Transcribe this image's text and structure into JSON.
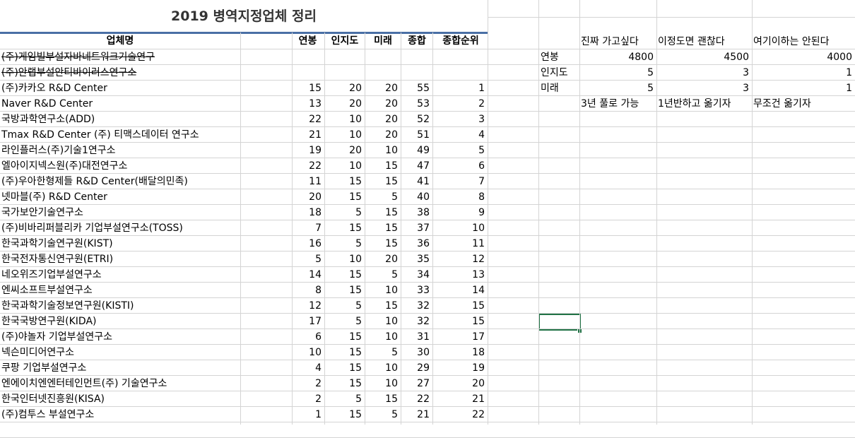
{
  "title": "2019 병역지정업체 정리",
  "headers": {
    "company": "업체명",
    "salary": "연봉",
    "recognition": "인지도",
    "future": "미래",
    "total": "종합",
    "rank": "종합순위"
  },
  "rows": [
    {
      "name": "(주)게임빌부설자바네트워크기술연구",
      "salary": "",
      "recognition": "",
      "future": "",
      "total": "",
      "rank": "",
      "struck": true
    },
    {
      "name": "(주)안랩부설안티바이러스연구소",
      "salary": "",
      "recognition": "",
      "future": "",
      "total": "",
      "rank": "",
      "struck": true
    },
    {
      "name": "(주)카카오 R&D Center",
      "salary": "15",
      "recognition": "20",
      "future": "20",
      "total": "55",
      "rank": "1"
    },
    {
      "name": "Naver R&D Center",
      "salary": "13",
      "recognition": "20",
      "future": "20",
      "total": "53",
      "rank": "2"
    },
    {
      "name": "국방과학연구소(ADD)",
      "salary": "22",
      "recognition": "10",
      "future": "20",
      "total": "52",
      "rank": "3"
    },
    {
      "name": "Tmax R&D Center (주) 티맥스데이터 연구소",
      "salary": "21",
      "recognition": "10",
      "future": "20",
      "total": "51",
      "rank": "4"
    },
    {
      "name": "라인플러스(주)기술1연구소",
      "salary": "19",
      "recognition": "20",
      "future": "10",
      "total": "49",
      "rank": "5"
    },
    {
      "name": "엘아이지넥스원(주)대전연구소",
      "salary": "22",
      "recognition": "10",
      "future": "15",
      "total": "47",
      "rank": "6"
    },
    {
      "name": "(주)우아한형제들 R&D Center(배달의민족)",
      "salary": "11",
      "recognition": "15",
      "future": "15",
      "total": "41",
      "rank": "7"
    },
    {
      "name": "넷마블(주) R&D Center",
      "salary": "20",
      "recognition": "15",
      "future": "5",
      "total": "40",
      "rank": "8"
    },
    {
      "name": "국가보안기술연구소",
      "salary": "18",
      "recognition": "5",
      "future": "15",
      "total": "38",
      "rank": "9"
    },
    {
      "name": "(주)비바리퍼블리카 기업부설연구소(TOSS)",
      "salary": "7",
      "recognition": "15",
      "future": "15",
      "total": "37",
      "rank": "10"
    },
    {
      "name": "한국과학기술연구원(KIST)",
      "salary": "16",
      "recognition": "5",
      "future": "15",
      "total": "36",
      "rank": "11"
    },
    {
      "name": "한국전자통신연구원(ETRI)",
      "salary": "5",
      "recognition": "10",
      "future": "20",
      "total": "35",
      "rank": "12"
    },
    {
      "name": "네오위즈기업부설연구소",
      "salary": "14",
      "recognition": "15",
      "future": "5",
      "total": "34",
      "rank": "13"
    },
    {
      "name": "엔씨소프트부설연구소",
      "salary": "8",
      "recognition": "15",
      "future": "10",
      "total": "33",
      "rank": "14"
    },
    {
      "name": "한국과학기술정보연구원(KISTI)",
      "salary": "12",
      "recognition": "5",
      "future": "15",
      "total": "32",
      "rank": "15"
    },
    {
      "name": "한국국방연구원(KIDA)",
      "salary": "17",
      "recognition": "5",
      "future": "10",
      "total": "32",
      "rank": "15"
    },
    {
      "name": "(주)야놀자 기업부설연구소",
      "salary": "6",
      "recognition": "15",
      "future": "10",
      "total": "31",
      "rank": "17"
    },
    {
      "name": "넥슨미디어연구소",
      "salary": "10",
      "recognition": "15",
      "future": "5",
      "total": "30",
      "rank": "18"
    },
    {
      "name": "쿠팡 기업부설연구소",
      "salary": "4",
      "recognition": "15",
      "future": "10",
      "total": "29",
      "rank": "19"
    },
    {
      "name": "엔에이치엔엔터테인먼트(주) 기술연구소",
      "salary": "2",
      "recognition": "15",
      "future": "10",
      "total": "27",
      "rank": "20"
    },
    {
      "name": "한국인터넷진흥원(KISA)",
      "salary": "2",
      "recognition": "5",
      "future": "15",
      "total": "22",
      "rank": "21"
    },
    {
      "name": "(주)컴투스 부설연구소",
      "salary": "1",
      "recognition": "15",
      "future": "5",
      "total": "21",
      "rank": "22"
    }
  ],
  "legend": {
    "col_headers": [
      "진짜 가고싶다",
      "이정도면 괜찮다",
      "여기이하는 안된다"
    ],
    "rows": [
      {
        "label": "연봉",
        "values": [
          "4800",
          "4500",
          "4000"
        ]
      },
      {
        "label": "인지도",
        "values": [
          "5",
          "3",
          "1"
        ]
      },
      {
        "label": "미래",
        "values": [
          "5",
          "3",
          "1"
        ]
      }
    ],
    "notes": [
      "3년 풀로 가능",
      "1년반하고 옮기자",
      "무조건 옮기자"
    ]
  },
  "colors": {
    "title_border": "#4a6fa5",
    "selection": "#217346",
    "grid": "#d4d4d4"
  }
}
